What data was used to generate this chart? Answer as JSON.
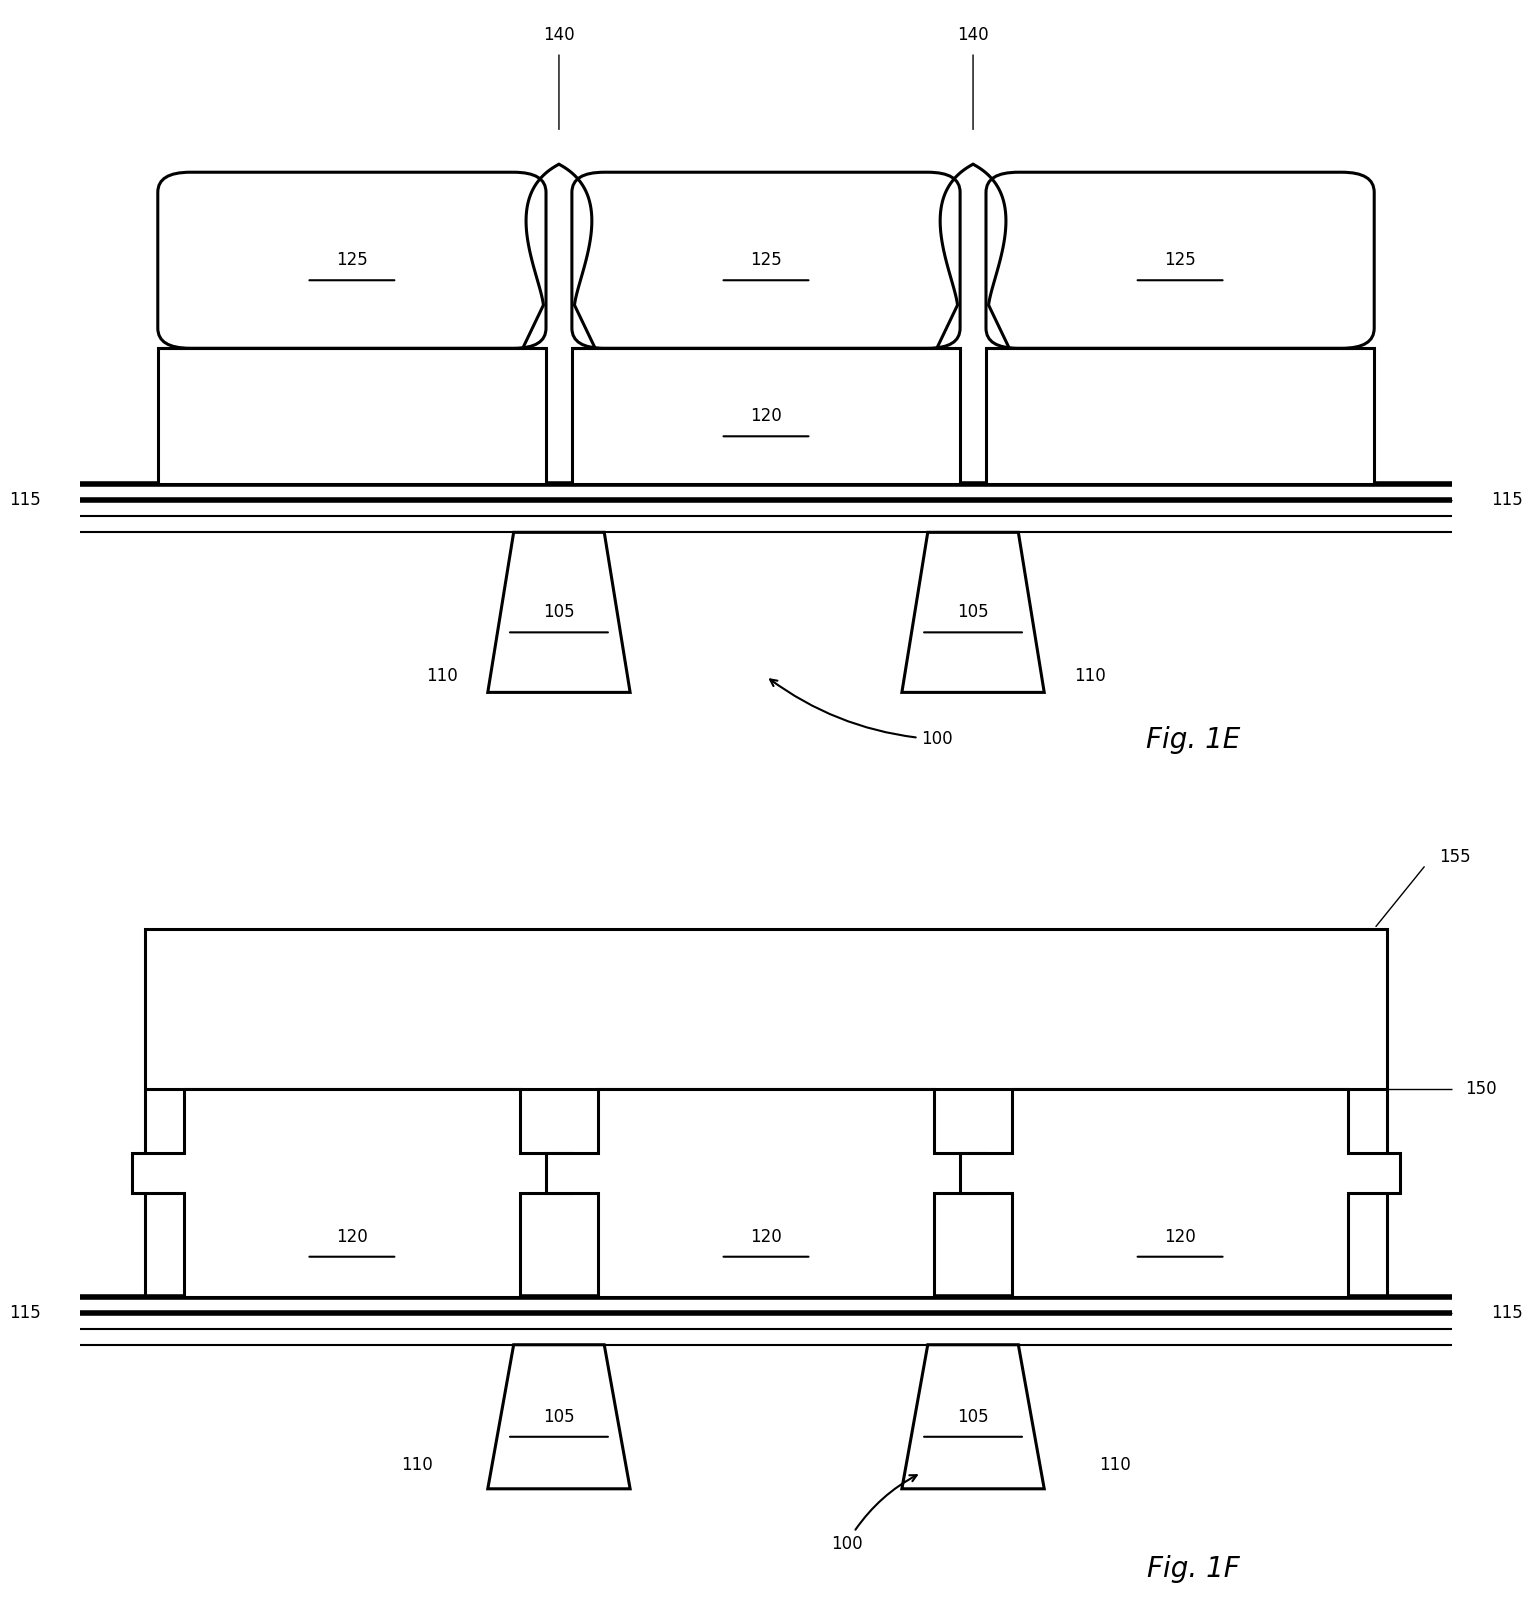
{
  "bg_color": "#ffffff",
  "line_color": "#000000",
  "lw": 2.2,
  "tlw": 4.0,
  "fig_width": 15.32,
  "fig_height": 16.13,
  "label_fontsize": 12,
  "title_fontsize": 20,
  "fig1e_title": "Fig. 1E",
  "fig1f_title": "Fig. 1F"
}
